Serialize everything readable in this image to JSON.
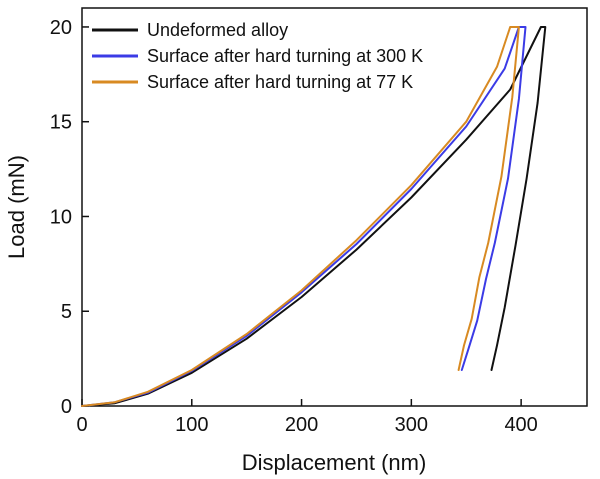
{
  "chart_data": {
    "type": "line",
    "title": "",
    "xlabel": "Displacement (nm)",
    "ylabel": "Load (mN)",
    "xlim": [
      0,
      460
    ],
    "ylim": [
      0,
      21
    ],
    "xticks": [
      0,
      100,
      200,
      300,
      400
    ],
    "yticks": [
      0,
      5,
      10,
      15,
      20
    ],
    "grid": false,
    "legend_position": "top-left",
    "series": [
      {
        "name": "Undeformed alloy",
        "color": "#111111",
        "x": [
          0,
          30,
          60,
          100,
          150,
          200,
          250,
          300,
          350,
          390,
          418,
          422,
          415,
          405,
          395,
          385,
          378,
          373
        ],
        "y": [
          0,
          0.15,
          0.65,
          1.75,
          3.55,
          5.75,
          8.25,
          11.0,
          14.05,
          16.7,
          20.0,
          20.0,
          16.0,
          12.0,
          8.5,
          5.2,
          3.2,
          1.9
        ]
      },
      {
        "name": "Surface after hard turning at 300 K",
        "color": "#3b3be6",
        "x": [
          0,
          30,
          60,
          100,
          150,
          200,
          250,
          300,
          350,
          385,
          398,
          404,
          398,
          388,
          376,
          368,
          360,
          352,
          346
        ],
        "y": [
          0,
          0.2,
          0.7,
          1.85,
          3.7,
          6.0,
          8.55,
          11.45,
          14.75,
          17.8,
          20.0,
          20.0,
          16.2,
          12.0,
          8.6,
          6.7,
          4.5,
          3.0,
          1.9
        ]
      },
      {
        "name": "Surface after hard turning at 77 K",
        "color": "#d88a22",
        "x": [
          0,
          30,
          60,
          100,
          150,
          200,
          250,
          300,
          350,
          378,
          390,
          398,
          392,
          382,
          370,
          362,
          355,
          348,
          343
        ],
        "y": [
          0,
          0.2,
          0.75,
          1.9,
          3.8,
          6.1,
          8.75,
          11.65,
          15.0,
          17.9,
          20.0,
          20.0,
          16.3,
          12.1,
          8.6,
          6.8,
          4.6,
          3.2,
          1.9
        ]
      }
    ]
  }
}
